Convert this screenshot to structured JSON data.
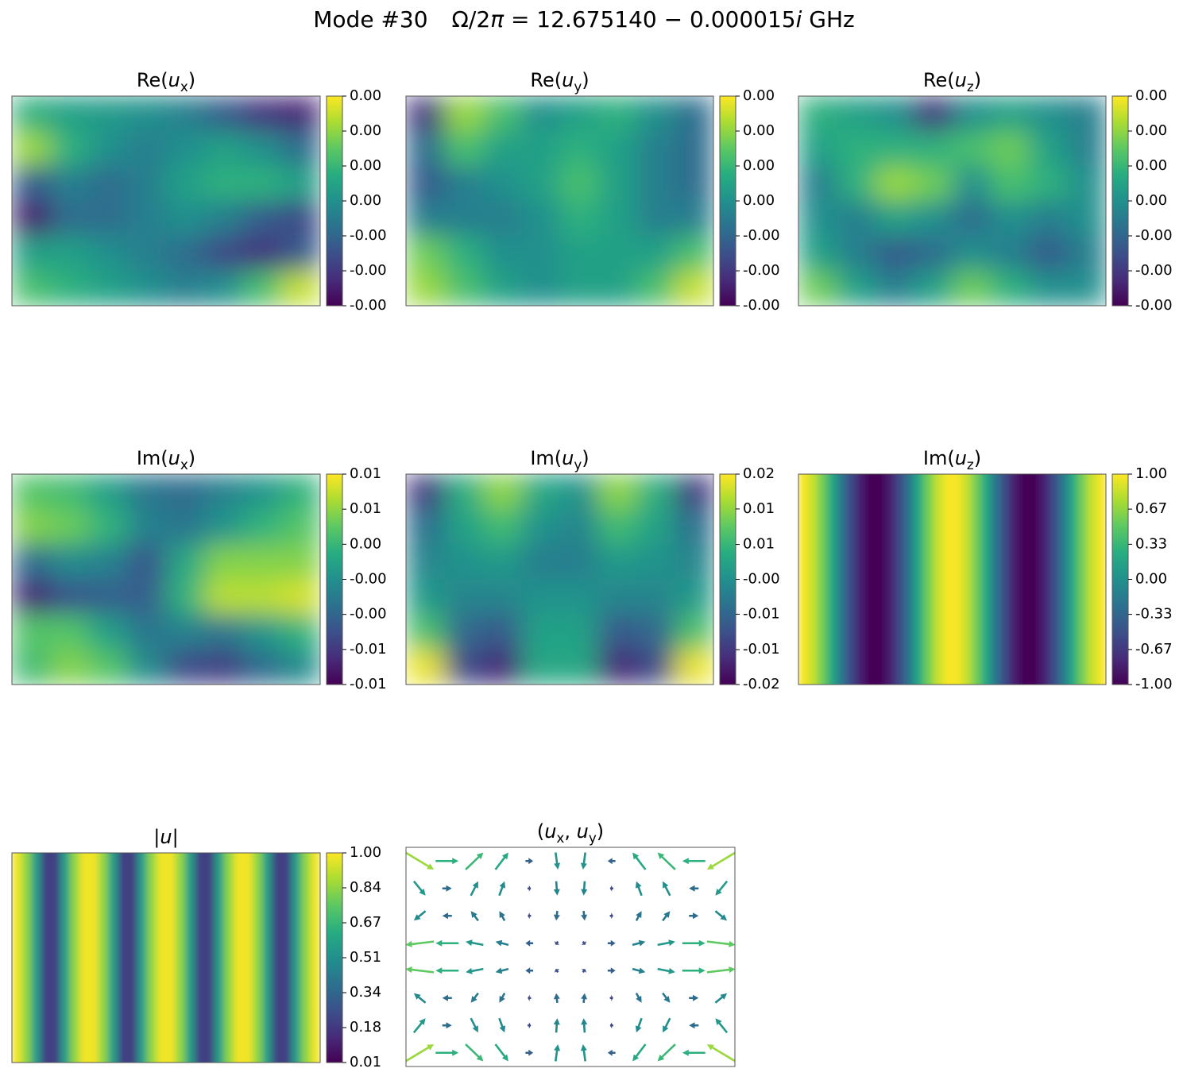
{
  "title_parts": [
    {
      "text": "Mode #30"
    },
    {
      "text": "Ω/2"
    },
    {
      "text": "π",
      "style": "italic"
    },
    {
      "text": " = 12.675140 − 0.000015"
    },
    {
      "text": "i",
      "style": "italic"
    },
    {
      "text": " GHz"
    }
  ],
  "chart_data": [
    {
      "type": "heatmap",
      "title_parts": [
        {
          "text": "Re("
        },
        {
          "text": "u",
          "style": "italic"
        },
        {
          "text": "x",
          "style": "sub"
        },
        {
          "text": ")"
        }
      ],
      "colormap": "viridis",
      "z": [
        [
          0.001,
          0.0005,
          0.0003,
          0.0,
          -0.0005,
          -0.0015,
          -0.0025,
          -0.0028
        ],
        [
          0.0025,
          0.001,
          0.0,
          -0.0005,
          0.0,
          0.0005,
          0.0,
          -0.001
        ],
        [
          -0.0015,
          -0.0005,
          -0.001,
          -0.0005,
          0.0005,
          0.001,
          0.001,
          0.0005
        ],
        [
          -0.003,
          -0.001,
          -0.001,
          -0.0005,
          0.0,
          -0.0005,
          -0.0015,
          -0.002
        ],
        [
          0.0005,
          0.0005,
          0.0,
          -0.0005,
          -0.001,
          -0.002,
          -0.0025,
          -0.0015
        ],
        [
          0.0015,
          0.001,
          0.0005,
          0.0,
          -0.0005,
          0.0,
          0.0015,
          0.003
        ]
      ],
      "clim": [
        -0.0036,
        0.0036
      ],
      "cticks": [
        {
          "value": -0.0036,
          "label": "-0.00"
        },
        {
          "value": -0.0024,
          "label": "-0.00"
        },
        {
          "value": -0.0012,
          "label": "-0.00"
        },
        {
          "value": 0,
          "label": "0.00"
        },
        {
          "value": 0.0012,
          "label": "0.00"
        },
        {
          "value": 0.0024,
          "label": "0.00"
        },
        {
          "value": 0.0036,
          "label": "0.00"
        }
      ]
    },
    {
      "type": "heatmap",
      "title_parts": [
        {
          "text": "Re("
        },
        {
          "text": "u",
          "style": "italic"
        },
        {
          "text": "y",
          "style": "sub"
        },
        {
          "text": ")"
        }
      ],
      "colormap": "viridis",
      "z": [
        [
          -0.0025,
          0.0025,
          0.0015,
          0.0,
          0.0005,
          0.001,
          0.0,
          -0.001
        ],
        [
          -0.001,
          0.0015,
          0.0005,
          0.0005,
          0.001,
          0.0005,
          -0.0005,
          -0.001
        ],
        [
          -0.0015,
          -0.0005,
          0.0,
          0.0005,
          0.0015,
          0.0005,
          -0.0005,
          -0.001
        ],
        [
          -0.0005,
          -0.0005,
          -0.0005,
          0.0,
          0.001,
          0.0005,
          -0.0005,
          -0.0005
        ],
        [
          0.002,
          0.001,
          0.0,
          0.0,
          0.0005,
          0.0005,
          0.0005,
          0.0015
        ],
        [
          0.0025,
          0.0015,
          0.0005,
          0.0,
          0.0005,
          0.0005,
          0.0015,
          0.003
        ]
      ],
      "clim": [
        -0.0036,
        0.0036
      ],
      "cticks": [
        {
          "value": -0.0036,
          "label": "-0.00"
        },
        {
          "value": -0.0024,
          "label": "-0.00"
        },
        {
          "value": -0.0012,
          "label": "-0.00"
        },
        {
          "value": 0,
          "label": "0.00"
        },
        {
          "value": 0.0012,
          "label": "0.00"
        },
        {
          "value": 0.0024,
          "label": "0.00"
        },
        {
          "value": 0.0036,
          "label": "0.00"
        }
      ]
    },
    {
      "type": "heatmap",
      "title_parts": [
        {
          "text": "Re("
        },
        {
          "text": "u",
          "style": "italic"
        },
        {
          "text": "z",
          "style": "sub"
        },
        {
          "text": ")"
        }
      ],
      "colormap": "viridis",
      "z": [
        [
          0.001,
          0.0005,
          0.0,
          -0.0025,
          0.0,
          0.0005,
          0.0,
          -0.0005
        ],
        [
          0.0005,
          0.001,
          0.001,
          0.001,
          0.0015,
          0.002,
          0.0005,
          -0.0005
        ],
        [
          -0.0005,
          0.001,
          0.0025,
          0.002,
          0.0,
          0.0015,
          0.001,
          0.0
        ],
        [
          0.0,
          -0.0005,
          0.0005,
          0.0,
          -0.001,
          0.0,
          -0.0005,
          0.0
        ],
        [
          0.0005,
          -0.0005,
          -0.0015,
          -0.001,
          0.0,
          -0.0005,
          -0.0015,
          -0.0005
        ],
        [
          0.002,
          0.0005,
          -0.0005,
          0.0005,
          0.002,
          0.001,
          0.0,
          0.0
        ]
      ],
      "clim": [
        -0.0036,
        0.0036
      ],
      "cticks": [
        {
          "value": -0.0036,
          "label": "-0.00"
        },
        {
          "value": -0.0024,
          "label": "-0.00"
        },
        {
          "value": -0.0012,
          "label": "-0.00"
        },
        {
          "value": 0,
          "label": "0.00"
        },
        {
          "value": 0.0012,
          "label": "0.00"
        },
        {
          "value": 0.0024,
          "label": "0.00"
        },
        {
          "value": 0.0036,
          "label": "0.00"
        }
      ]
    },
    {
      "type": "heatmap",
      "title_parts": [
        {
          "text": "Im("
        },
        {
          "text": "u",
          "style": "italic"
        },
        {
          "text": "x",
          "style": "sub"
        },
        {
          "text": ")"
        }
      ],
      "colormap": "viridis",
      "z": [
        [
          0.005,
          0.004,
          0.001,
          -0.003,
          -0.004,
          -0.002,
          0.0,
          0.003
        ],
        [
          0.007,
          0.006,
          0.003,
          -0.002,
          -0.003,
          0.0,
          0.003,
          0.005
        ],
        [
          -0.004,
          -0.001,
          -0.002,
          -0.006,
          0.002,
          0.007,
          0.007,
          0.007
        ],
        [
          -0.01,
          -0.006,
          -0.005,
          -0.005,
          0.003,
          0.009,
          0.009,
          0.01
        ],
        [
          0.005,
          0.005,
          0.001,
          -0.003,
          -0.002,
          -0.003,
          0.0,
          0.003
        ],
        [
          0.004,
          0.007,
          0.005,
          -0.001,
          -0.007,
          -0.008,
          -0.004,
          -0.001
        ]
      ],
      "clim": [
        -0.0125,
        0.0115
      ],
      "cticks": [
        {
          "value": -0.0125,
          "label": "-0.01"
        },
        {
          "value": -0.0085,
          "label": "-0.01"
        },
        {
          "value": -0.0045,
          "label": "-0.00"
        },
        {
          "value": -0.0005,
          "label": "-0.00"
        },
        {
          "value": 0.0035,
          "label": "0.00"
        },
        {
          "value": 0.0075,
          "label": "0.01"
        },
        {
          "value": 0.0115,
          "label": "0.01"
        }
      ]
    },
    {
      "type": "heatmap",
      "title_parts": [
        {
          "text": "Im("
        },
        {
          "text": "u",
          "style": "italic"
        },
        {
          "text": "y",
          "style": "sub"
        },
        {
          "text": ")"
        }
      ],
      "colormap": "viridis",
      "z": [
        [
          -0.012,
          0.004,
          0.011,
          0.003,
          0.0,
          0.011,
          0.004,
          -0.012
        ],
        [
          -0.005,
          0.002,
          0.006,
          0.0,
          -0.002,
          0.006,
          0.002,
          -0.005
        ],
        [
          -0.002,
          0.0,
          0.001,
          -0.003,
          -0.003,
          0.001,
          0.0,
          -0.002
        ],
        [
          0.001,
          -0.002,
          -0.002,
          0.0,
          0.0,
          -0.002,
          -0.002,
          0.001
        ],
        [
          0.007,
          -0.006,
          -0.008,
          0.002,
          0.002,
          -0.008,
          -0.006,
          0.007
        ],
        [
          0.016,
          -0.01,
          -0.014,
          0.003,
          0.003,
          -0.014,
          -0.01,
          0.016
        ]
      ],
      "clim": [
        -0.018,
        0.017
      ],
      "cticks": [
        {
          "value": -0.018,
          "label": "-0.02"
        },
        {
          "value": -0.0122,
          "label": "-0.01"
        },
        {
          "value": -0.0063,
          "label": "-0.01"
        },
        {
          "value": -0.0005,
          "label": "-0.00"
        },
        {
          "value": 0.0053,
          "label": "0.01"
        },
        {
          "value": 0.0112,
          "label": "0.01"
        },
        {
          "value": 0.017,
          "label": "0.02"
        }
      ]
    },
    {
      "type": "heatmap",
      "title_parts": [
        {
          "text": "Im("
        },
        {
          "text": "u",
          "style": "italic"
        },
        {
          "text": "z",
          "style": "sub"
        },
        {
          "text": ")"
        }
      ],
      "colormap": "viridis",
      "z": [
        [
          0.98,
          0.83,
          0.56,
          0.2,
          -0.2,
          -0.56,
          -0.83,
          -0.98,
          -0.98,
          -0.83,
          -0.56,
          -0.2,
          0.2,
          0.56,
          0.83,
          0.98,
          0.98,
          0.83,
          0.56,
          0.2,
          -0.2,
          -0.56,
          -0.83,
          -0.98,
          -0.98,
          -0.83,
          -0.56,
          -0.2,
          0.2,
          0.56,
          0.83,
          0.98
        ]
      ],
      "clim": [
        -1,
        1
      ],
      "cticks": [
        {
          "value": -1,
          "label": "-1.00"
        },
        {
          "value": -0.667,
          "label": "-0.67"
        },
        {
          "value": -0.333,
          "label": "-0.33"
        },
        {
          "value": 0,
          "label": "0.00"
        },
        {
          "value": 0.333,
          "label": "0.33"
        },
        {
          "value": 0.667,
          "label": "0.67"
        },
        {
          "value": 1,
          "label": "1.00"
        }
      ]
    },
    {
      "type": "heatmap",
      "title_parts": [
        {
          "text": "|"
        },
        {
          "text": "u",
          "style": "italic"
        },
        {
          "text": "|"
        }
      ],
      "colormap": "viridis",
      "z": [
        [
          0.98,
          0.83,
          0.56,
          0.2,
          0.2,
          0.56,
          0.83,
          0.98,
          0.98,
          0.83,
          0.56,
          0.2,
          0.2,
          0.56,
          0.83,
          0.98,
          0.98,
          0.83,
          0.56,
          0.2,
          0.2,
          0.56,
          0.83,
          0.98,
          0.98,
          0.83,
          0.56,
          0.2,
          0.2,
          0.56,
          0.83,
          0.98
        ]
      ],
      "clim": [
        0.01,
        1
      ],
      "cticks": [
        {
          "value": 0.01,
          "label": "0.01"
        },
        {
          "value": 0.175,
          "label": "0.18"
        },
        {
          "value": 0.34,
          "label": "0.34"
        },
        {
          "value": 0.505,
          "label": "0.51"
        },
        {
          "value": 0.67,
          "label": "0.67"
        },
        {
          "value": 0.835,
          "label": "0.84"
        },
        {
          "value": 1,
          "label": "1.00"
        }
      ]
    },
    {
      "type": "quiver",
      "title_parts": [
        {
          "text": "("
        },
        {
          "text": "u",
          "style": "italic"
        },
        {
          "text": "x",
          "style": "sub"
        },
        {
          "text": ", "
        },
        {
          "text": "u",
          "style": "italic"
        },
        {
          "text": "y",
          "style": "sub"
        },
        {
          "text": ")"
        }
      ],
      "colormap": "viridis",
      "u": [
        [
          0.85,
          0.69,
          0.53,
          0.39,
          0.23,
          0.07,
          -0.07,
          -0.23,
          -0.39,
          -0.53,
          -0.69,
          -0.85
        ],
        [
          0.35,
          0.29,
          0.22,
          0.16,
          0.1,
          0.03,
          -0.03,
          -0.1,
          -0.16,
          -0.22,
          -0.29,
          -0.35
        ],
        [
          -0.35,
          -0.29,
          -0.22,
          -0.16,
          -0.1,
          -0.03,
          0.03,
          0.1,
          0.16,
          0.22,
          0.29,
          0.35
        ],
        [
          -0.85,
          -0.69,
          -0.53,
          -0.39,
          -0.23,
          -0.07,
          0.07,
          0.23,
          0.39,
          0.53,
          0.69,
          0.85
        ],
        [
          -0.85,
          -0.69,
          -0.53,
          -0.39,
          -0.23,
          -0.07,
          0.07,
          0.23,
          0.39,
          0.53,
          0.69,
          0.85
        ],
        [
          -0.35,
          -0.29,
          -0.22,
          -0.16,
          -0.1,
          -0.03,
          0.03,
          0.1,
          0.16,
          0.22,
          0.29,
          0.35
        ],
        [
          0.35,
          0.29,
          0.22,
          0.16,
          0.1,
          0.03,
          -0.03,
          -0.1,
          -0.16,
          -0.22,
          -0.29,
          -0.35
        ],
        [
          0.85,
          0.69,
          0.53,
          0.39,
          0.23,
          0.07,
          -0.07,
          -0.23,
          -0.39,
          -0.53,
          -0.69,
          -0.85
        ]
      ],
      "v": [
        [
          -0.51,
          0,
          0.51,
          0.51,
          0,
          -0.51,
          -0.51,
          0,
          0.51,
          0.51,
          0,
          -0.51
        ],
        [
          -0.43,
          0,
          0.43,
          0.43,
          0,
          -0.43,
          -0.43,
          0,
          0.43,
          0.43,
          0,
          -0.43
        ],
        [
          -0.29,
          0,
          0.29,
          0.29,
          0,
          -0.29,
          -0.29,
          0,
          0.29,
          0.29,
          0,
          -0.29
        ],
        [
          -0.1,
          0,
          0.1,
          0.1,
          0,
          -0.1,
          -0.1,
          0,
          0.1,
          0.1,
          0,
          -0.1
        ],
        [
          0.1,
          0,
          -0.1,
          -0.1,
          0,
          0.1,
          0.1,
          0,
          -0.1,
          -0.1,
          0,
          0.1
        ],
        [
          0.29,
          0,
          -0.29,
          -0.29,
          0,
          0.29,
          0.29,
          0,
          -0.29,
          -0.29,
          0,
          0.29
        ],
        [
          0.43,
          0,
          -0.43,
          -0.43,
          0,
          0.43,
          0.43,
          0,
          -0.43,
          -0.43,
          0,
          0.43
        ],
        [
          0.51,
          0,
          -0.51,
          -0.51,
          0,
          0.51,
          0.51,
          0,
          -0.51,
          -0.51,
          0,
          0.51
        ]
      ]
    }
  ]
}
